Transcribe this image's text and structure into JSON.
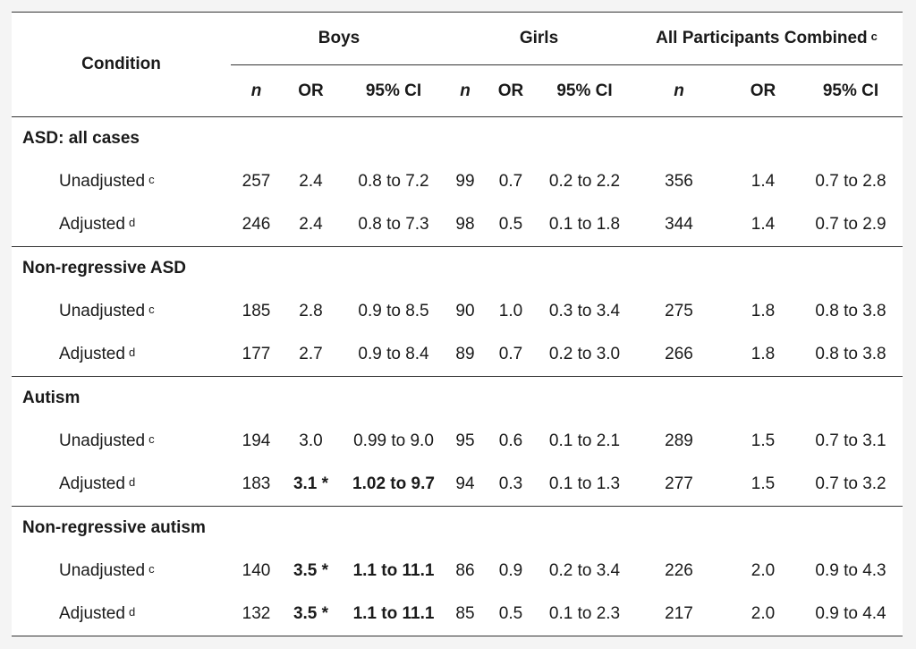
{
  "header": {
    "condition": "Condition",
    "groups": [
      "Boys",
      "Girls",
      "All Participants Combined"
    ],
    "group_combined_sup": "c",
    "sub": {
      "n": "n",
      "or": "OR",
      "ci": "95% CI"
    }
  },
  "sections": [
    {
      "title": "ASD: all cases",
      "rows": [
        {
          "label": "Unadjusted",
          "sup": "c",
          "boys": [
            "257",
            "2.4",
            "0.8 to 7.2"
          ],
          "girls": [
            "99",
            "0.7",
            "0.2 to 2.2"
          ],
          "all": [
            "356",
            "1.4",
            "0.7 to 2.8"
          ]
        },
        {
          "label": "Adjusted",
          "sup": "d",
          "boys": [
            "246",
            "2.4",
            "0.8 to 7.3"
          ],
          "girls": [
            "98",
            "0.5",
            "0.1 to 1.8"
          ],
          "all": [
            "344",
            "1.4",
            "0.7 to 2.9"
          ]
        }
      ]
    },
    {
      "title": "Non-regressive ASD",
      "rows": [
        {
          "label": "Unadjusted",
          "sup": "c",
          "boys": [
            "185",
            "2.8",
            "0.9 to 8.5"
          ],
          "girls": [
            "90",
            "1.0",
            "0.3 to 3.4"
          ],
          "all": [
            "275",
            "1.8",
            "0.8 to 3.8"
          ]
        },
        {
          "label": "Adjusted",
          "sup": "d",
          "boys": [
            "177",
            "2.7",
            "0.9 to 8.4"
          ],
          "girls": [
            "89",
            "0.7",
            "0.2 to 3.0"
          ],
          "all": [
            "266",
            "1.8",
            "0.8 to 3.8"
          ]
        }
      ]
    },
    {
      "title": "Autism",
      "rows": [
        {
          "label": "Unadjusted",
          "sup": "c",
          "boys": [
            "194",
            "3.0",
            "0.99 to 9.0"
          ],
          "girls": [
            "95",
            "0.6",
            "0.1 to 2.1"
          ],
          "all": [
            "289",
            "1.5",
            "0.7 to 3.1"
          ]
        },
        {
          "label": "Adjusted",
          "sup": "d",
          "boys": [
            "183",
            "3.1 *",
            "1.02 to 9.7"
          ],
          "girls": [
            "94",
            "0.3",
            "0.1 to 1.3"
          ],
          "all": [
            "277",
            "1.5",
            "0.7 to 3.2"
          ]
        }
      ]
    },
    {
      "title": "Non-regressive autism",
      "rows": [
        {
          "label": "Unadjusted",
          "sup": "c",
          "boys": [
            "140",
            "3.5 *",
            "1.1 to 11.1"
          ],
          "girls": [
            "86",
            "0.9",
            "0.2 to 3.4"
          ],
          "all": [
            "226",
            "2.0",
            "0.9 to 4.3"
          ]
        },
        {
          "label": "Adjusted",
          "sup": "d",
          "boys": [
            "132",
            "3.5 *",
            "1.1 to 11.1"
          ],
          "girls": [
            "85",
            "0.5",
            "0.1 to 2.3"
          ],
          "all": [
            "217",
            "2.0",
            "0.9 to 4.4"
          ]
        }
      ]
    }
  ]
}
